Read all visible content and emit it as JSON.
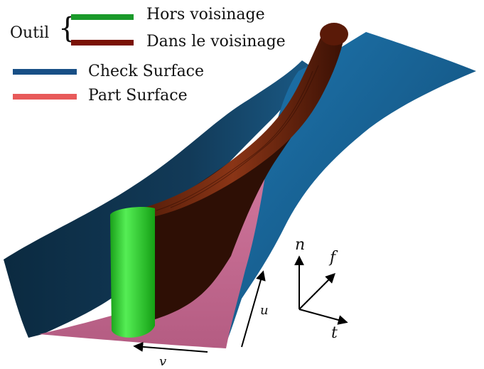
{
  "legend": {
    "group_label": "Outil",
    "brace": "{",
    "items": [
      {
        "label": "Hors voisinage",
        "color": "#1a9a2a"
      },
      {
        "label": "Dans le voisinage",
        "color": "#7a1206"
      },
      {
        "label": "Check Surface",
        "color": "#184f86"
      },
      {
        "label": "Part Surface",
        "color": "#e85a5a"
      }
    ]
  },
  "axes": {
    "local_frame": {
      "n": "n",
      "f": "f",
      "t": "t"
    },
    "surface_params": {
      "u": "u",
      "v": "v"
    }
  },
  "colors": {
    "check_surface_dark": "#0d2f45",
    "check_surface_light": "#1f6e9c",
    "part_surface": "#c46a90",
    "tool_in_neighborhood": "#6e2410",
    "tool_out_of_neighborhood": "#2ecf2e"
  }
}
